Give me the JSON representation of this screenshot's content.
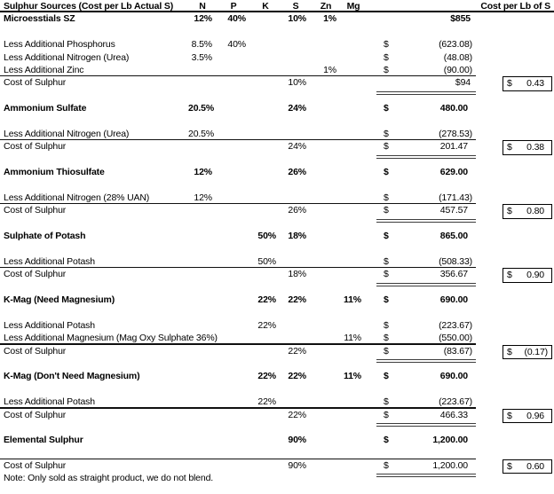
{
  "header": {
    "label": "Sulphur Sources (Cost per Lb Actual S)",
    "cost_label": "Cost per Lb of S"
  },
  "columns": [
    "N",
    "P",
    "K",
    "S",
    "Zn",
    "Mg"
  ],
  "colors": {
    "text": "#000000",
    "background": "#ffffff",
    "rule": "#101010",
    "double_rule": "#3d3d3d"
  },
  "rows": [
    {
      "t": "product",
      "label": "Microesstials SZ",
      "n": "12%",
      "p": "40%",
      "s": "10%",
      "zn": "1%",
      "amt_plain": "$855"
    },
    {
      "t": "blank"
    },
    {
      "t": "less",
      "label": "Less Additional Phosphorus",
      "n": "8.5%",
      "p": "40%",
      "cur": "$",
      "amt": "(623.08)"
    },
    {
      "t": "less",
      "label": "Less Additional Nitrogen (Urea)",
      "n": "3.5%",
      "cur": "$",
      "amt": "(48.08)"
    },
    {
      "t": "less_end",
      "label": "Less Additional Zinc",
      "zn": "1%",
      "cur": "$",
      "amt": "(90.00)"
    },
    {
      "t": "cost",
      "label": "Cost of Sulphur",
      "s": "10%",
      "amt_plain": "$94",
      "box_cur": "$",
      "box": "0.43"
    },
    {
      "t": "blank"
    },
    {
      "t": "product",
      "label": "Ammonium Sulfate",
      "n": "20.5%",
      "s": "24%",
      "cur": "$",
      "amt": "480.00"
    },
    {
      "t": "blank"
    },
    {
      "t": "less_end",
      "label": "Less Additional Nitrogen (Urea)",
      "n": "20.5%",
      "cur": "$",
      "amt": "(278.53)"
    },
    {
      "t": "cost",
      "label": "Cost of Sulphur",
      "s": "24%",
      "cur": "$",
      "amt": "201.47",
      "box_cur": "$",
      "box": "0.38"
    },
    {
      "t": "blank"
    },
    {
      "t": "product",
      "label": "Ammonium Thiosulfate",
      "n": "12%",
      "s": "26%",
      "cur": "$",
      "amt": "629.00"
    },
    {
      "t": "blank"
    },
    {
      "t": "less_end",
      "label": "Less Additional Nitrogen (28% UAN)",
      "n": "12%",
      "cur": "$",
      "amt": "(171.43)"
    },
    {
      "t": "cost",
      "label": "Cost of Sulphur",
      "s": "26%",
      "cur": "$",
      "amt": "457.57",
      "box_cur": "$",
      "box": "0.80"
    },
    {
      "t": "blank"
    },
    {
      "t": "product",
      "label": "Sulphate of Potash",
      "k": "50%",
      "s": "18%",
      "cur": "$",
      "amt": "865.00"
    },
    {
      "t": "blank"
    },
    {
      "t": "less_end",
      "label": "Less Additional Potash",
      "k": "50%",
      "cur": "$",
      "amt": "(508.33)"
    },
    {
      "t": "cost",
      "label": "Cost of Sulphur",
      "s": "18%",
      "cur": "$",
      "amt": "356.67",
      "box_cur": "$",
      "box": "0.90"
    },
    {
      "t": "blank"
    },
    {
      "t": "product",
      "label": "K-Mag (Need Magnesium)",
      "k": "22%",
      "s": "22%",
      "mg": "11%",
      "cur": "$",
      "amt": "690.00"
    },
    {
      "t": "blank"
    },
    {
      "t": "less",
      "label": "Less Additional Potash",
      "k": "22%",
      "cur": "$",
      "amt": "(223.67)"
    },
    {
      "t": "less_end",
      "label": "Less Additional Magnesium (Mag Oxy Sulphate 36%)",
      "mg": "11%",
      "cur": "$",
      "amt": "(550.00)"
    },
    {
      "t": "cost",
      "label": "Cost of Sulphur",
      "s": "22%",
      "cur": "$",
      "amt": "(83.67)",
      "box_cur": "$",
      "box": "(0.17)"
    },
    {
      "t": "blank"
    },
    {
      "t": "product",
      "label": "K-Mag (Don't Need Magnesium)",
      "k": "22%",
      "s": "22%",
      "mg": "11%",
      "cur": "$",
      "amt": "690.00"
    },
    {
      "t": "blank"
    },
    {
      "t": "less_end",
      "label": "Less Additional Potash",
      "k": "22%",
      "cur": "$",
      "amt": "(223.67)"
    },
    {
      "t": "cost",
      "label": "Cost of Sulphur",
      "s": "22%",
      "cur": "$",
      "amt": "466.33",
      "box_cur": "$",
      "box": "0.96"
    },
    {
      "t": "blank"
    },
    {
      "t": "product",
      "label": "Elemental Sulphur",
      "s": "90%",
      "cur": "$",
      "amt": "1,200.00"
    },
    {
      "t": "blank_rule"
    },
    {
      "t": "cost",
      "label": "Cost of Sulphur",
      "s": "90%",
      "cur": "$",
      "amt": "1,200.00",
      "box_cur": "$",
      "box": "0.60"
    },
    {
      "t": "note",
      "label": "Note: Only sold as straight product, we do not blend."
    }
  ]
}
